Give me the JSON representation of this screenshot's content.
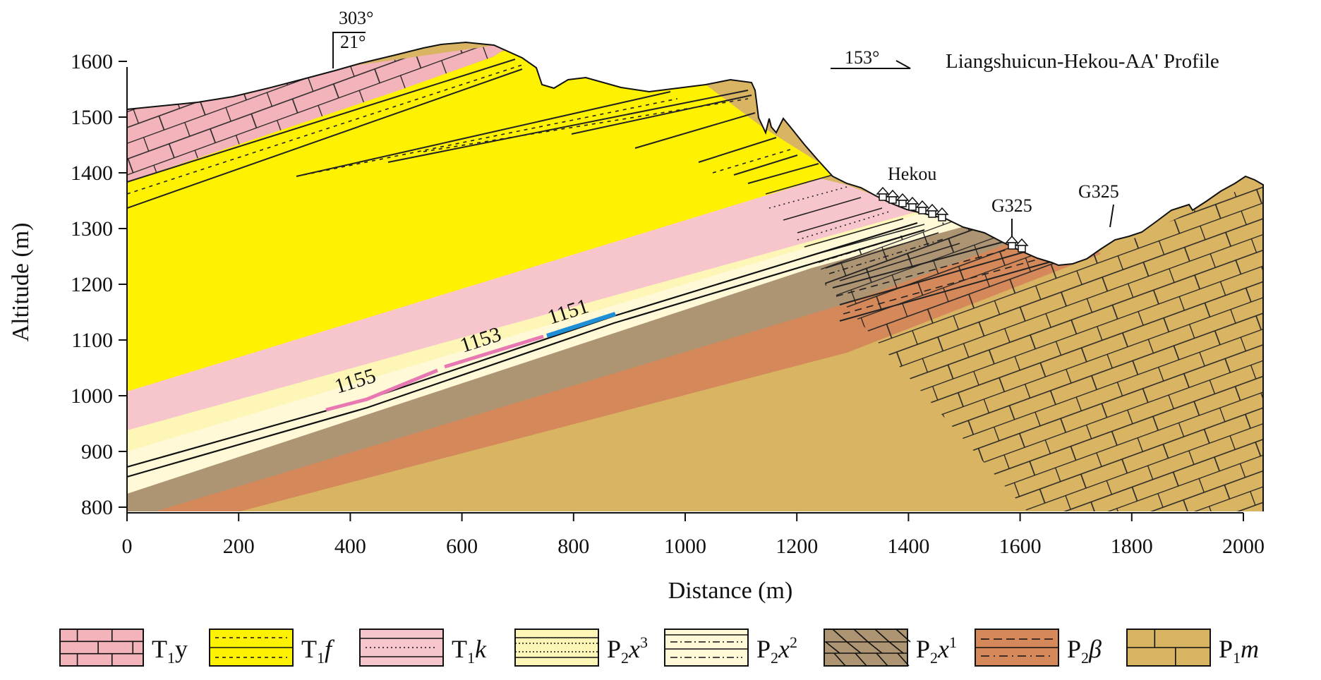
{
  "profile": {
    "title": "Liangshuicun-Hekou-AA' Profile",
    "azimuth": "153°",
    "dip_azimuth": "303°",
    "dip_angle": "21°"
  },
  "axes": {
    "x_title": "Distance (m)",
    "y_title": "Altitude (m)",
    "x_ticks": [
      "0",
      "200",
      "400",
      "600",
      "800",
      "1000",
      "1200",
      "1400",
      "1600",
      "1800",
      "2000"
    ],
    "y_ticks": [
      "800",
      "900",
      "1000",
      "1100",
      "1200",
      "1300",
      "1400",
      "1500",
      "1600"
    ]
  },
  "annotations": {
    "village": "Hekou",
    "road_1": "G325",
    "road_2": "G325"
  },
  "seams": {
    "seam_1155": "1155",
    "seam_1153": "1153",
    "seam_1151": "1151"
  },
  "colors": {
    "T1y": "#f2b3ba",
    "T1f": "#fff200",
    "T1k": "#f6c6cc",
    "P2x3": "#fdf6b6",
    "P2x2": "#fff9d8",
    "P2x1": "#ad9473",
    "P2b": "#d5895a",
    "P1m": "#d8b463",
    "seam_pink": "#e878b2",
    "seam_blue": "#1e8fd6"
  },
  "legend": [
    {
      "key": "T1y",
      "main": "T",
      "sub": "1",
      "rest": "y",
      "italic": false,
      "sup": ""
    },
    {
      "key": "T1f",
      "main": "T",
      "sub": "1",
      "rest": "f",
      "italic": true,
      "sup": ""
    },
    {
      "key": "T1k",
      "main": "T",
      "sub": "1",
      "rest": "k",
      "italic": true,
      "sup": ""
    },
    {
      "key": "P2x3",
      "main": "P",
      "sub": "2",
      "rest": "x",
      "italic": true,
      "sup": "3"
    },
    {
      "key": "P2x2",
      "main": "P",
      "sub": "2",
      "rest": "x",
      "italic": true,
      "sup": "2"
    },
    {
      "key": "P2x1",
      "main": "P",
      "sub": "2",
      "rest": "x",
      "italic": true,
      "sup": "1"
    },
    {
      "key": "P2b",
      "main": "P",
      "sub": "2",
      "rest": "β",
      "italic": true,
      "sup": ""
    },
    {
      "key": "P1m",
      "main": "P",
      "sub": "1",
      "rest": "m",
      "italic": true,
      "sup": ""
    }
  ]
}
